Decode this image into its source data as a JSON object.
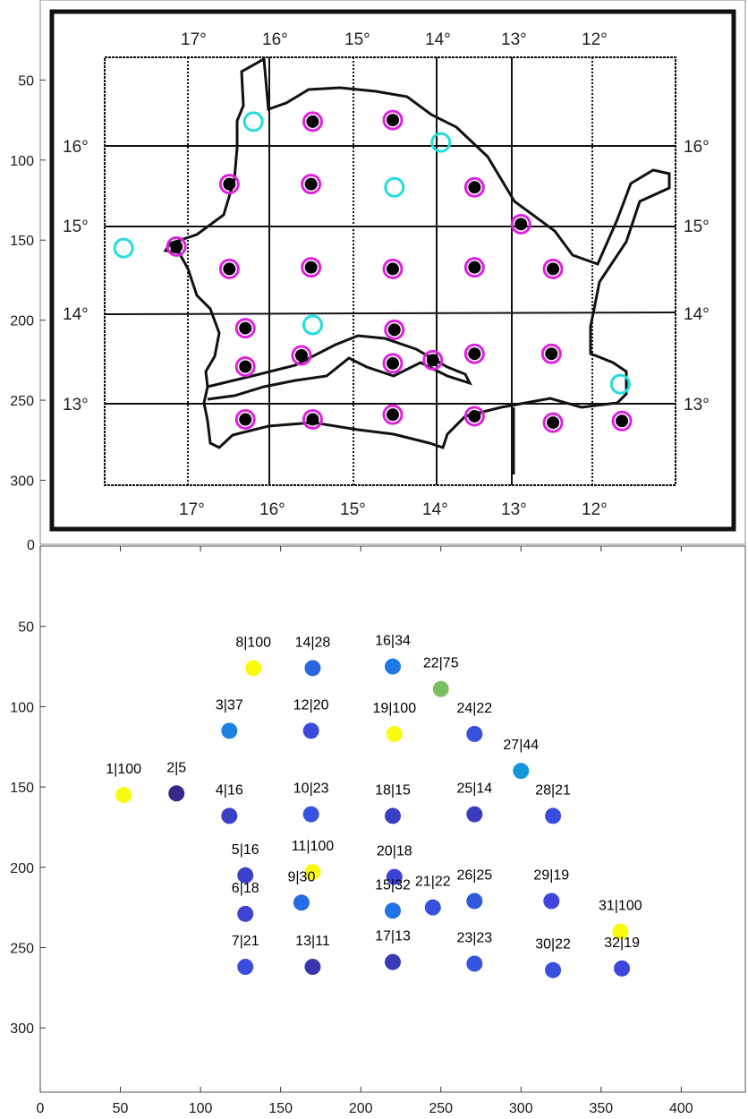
{
  "map_panel": {
    "longitude_labels": [
      "17°",
      "16°",
      "15°",
      "14°",
      "13°",
      "12°"
    ],
    "latitude_labels": [
      "16°",
      "15°",
      "14°",
      "13°"
    ],
    "y_ticks": [
      "50",
      "100",
      "150",
      "200",
      "250",
      "300"
    ],
    "colors": {
      "station_ring": "#dd22dd",
      "station_dot": "#000000",
      "cyan_ring": "#22dddd"
    },
    "black_stations": [
      {
        "x": 170,
        "y": 76
      },
      {
        "x": 220,
        "y": 75
      },
      {
        "x": 118,
        "y": 115
      },
      {
        "x": 169,
        "y": 115
      },
      {
        "x": 271,
        "y": 117
      },
      {
        "x": 300,
        "y": 140
      },
      {
        "x": 85,
        "y": 154
      },
      {
        "x": 118,
        "y": 168
      },
      {
        "x": 169,
        "y": 167
      },
      {
        "x": 220,
        "y": 168
      },
      {
        "x": 271,
        "y": 167
      },
      {
        "x": 320,
        "y": 168
      },
      {
        "x": 128,
        "y": 205
      },
      {
        "x": 221,
        "y": 206
      },
      {
        "x": 128,
        "y": 229
      },
      {
        "x": 163,
        "y": 222
      },
      {
        "x": 220,
        "y": 227
      },
      {
        "x": 245,
        "y": 225
      },
      {
        "x": 271,
        "y": 221
      },
      {
        "x": 319,
        "y": 221
      },
      {
        "x": 128,
        "y": 262
      },
      {
        "x": 170,
        "y": 262
      },
      {
        "x": 220,
        "y": 259
      },
      {
        "x": 271,
        "y": 260
      },
      {
        "x": 320,
        "y": 264
      },
      {
        "x": 363,
        "y": 263
      }
    ],
    "cyan_stations": [
      {
        "x": 133,
        "y": 76
      },
      {
        "x": 250,
        "y": 89
      },
      {
        "x": 221,
        "y": 117
      },
      {
        "x": 52,
        "y": 155
      },
      {
        "x": 170,
        "y": 203
      },
      {
        "x": 362,
        "y": 240
      }
    ]
  },
  "chart_data": {
    "type": "scatter",
    "xlim": [
      0,
      440
    ],
    "ylim": [
      0,
      340
    ],
    "y_reversed": true,
    "x_ticks": [
      "0",
      "50",
      "100",
      "150",
      "200",
      "250",
      "300",
      "350",
      "400"
    ],
    "y_ticks": [
      "0",
      "50",
      "100",
      "150",
      "200",
      "250",
      "300"
    ],
    "colormap": "parula",
    "points": [
      {
        "label": "1|100",
        "x": 52,
        "y": 155,
        "value": 100
      },
      {
        "label": "2|5",
        "x": 85,
        "y": 154,
        "value": 5
      },
      {
        "label": "3|37",
        "x": 118,
        "y": 115,
        "value": 37
      },
      {
        "label": "4|16",
        "x": 118,
        "y": 168,
        "value": 16
      },
      {
        "label": "5|16",
        "x": 128,
        "y": 205,
        "value": 16
      },
      {
        "label": "6|18",
        "x": 128,
        "y": 229,
        "value": 18
      },
      {
        "label": "7|21",
        "x": 128,
        "y": 262,
        "value": 21
      },
      {
        "label": "8|100",
        "x": 133,
        "y": 76,
        "value": 100
      },
      {
        "label": "9|30",
        "x": 163,
        "y": 222,
        "value": 30
      },
      {
        "label": "10|23",
        "x": 169,
        "y": 167,
        "value": 23
      },
      {
        "label": "11|100",
        "x": 170,
        "y": 203,
        "value": 100
      },
      {
        "label": "12|20",
        "x": 169,
        "y": 115,
        "value": 20
      },
      {
        "label": "13|11",
        "x": 170,
        "y": 262,
        "value": 11
      },
      {
        "label": "14|28",
        "x": 170,
        "y": 76,
        "value": 28
      },
      {
        "label": "15|32",
        "x": 220,
        "y": 227,
        "value": 32
      },
      {
        "label": "16|34",
        "x": 220,
        "y": 75,
        "value": 34
      },
      {
        "label": "17|13",
        "x": 220,
        "y": 259,
        "value": 13
      },
      {
        "label": "18|15",
        "x": 220,
        "y": 168,
        "value": 15
      },
      {
        "label": "19|100",
        "x": 221,
        "y": 117,
        "value": 100
      },
      {
        "label": "20|18",
        "x": 221,
        "y": 206,
        "value": 18
      },
      {
        "label": "21|22",
        "x": 245,
        "y": 225,
        "value": 22
      },
      {
        "label": "22|75",
        "x": 250,
        "y": 89,
        "value": 75
      },
      {
        "label": "23|23",
        "x": 271,
        "y": 260,
        "value": 23
      },
      {
        "label": "24|22",
        "x": 271,
        "y": 117,
        "value": 22
      },
      {
        "label": "25|14",
        "x": 271,
        "y": 167,
        "value": 14
      },
      {
        "label": "26|25",
        "x": 271,
        "y": 221,
        "value": 25
      },
      {
        "label": "27|44",
        "x": 300,
        "y": 140,
        "value": 44
      },
      {
        "label": "28|21",
        "x": 320,
        "y": 168,
        "value": 21
      },
      {
        "label": "29|19",
        "x": 319,
        "y": 221,
        "value": 19
      },
      {
        "label": "30|22",
        "x": 320,
        "y": 264,
        "value": 22
      },
      {
        "label": "31|100",
        "x": 362,
        "y": 240,
        "value": 100
      },
      {
        "label": "32|19",
        "x": 363,
        "y": 263,
        "value": 19
      }
    ]
  }
}
